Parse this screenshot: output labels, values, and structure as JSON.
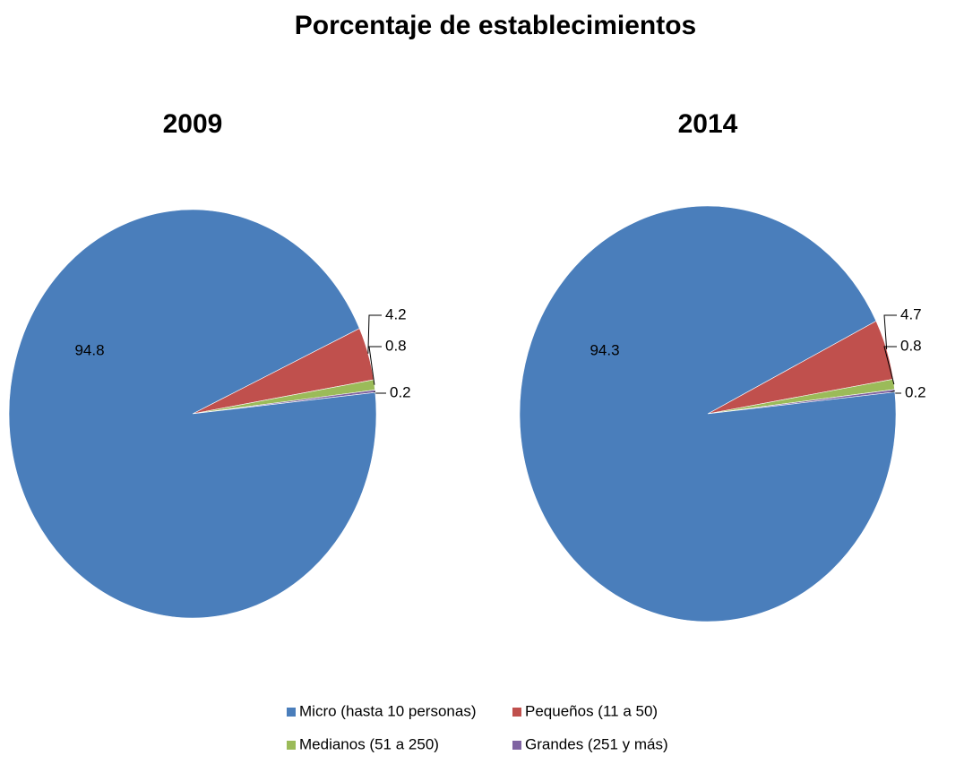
{
  "title": "Porcentaje de establecimientos",
  "legend": {
    "categories": [
      "Micro (hasta 10 personas)",
      "Pequeños (11 a 50)",
      "Medianos (51 a 250)",
      "Grandes (251 y más)"
    ],
    "colors": [
      "#4a7ebb",
      "#c0504d",
      "#9bbb59",
      "#8064a2"
    ]
  },
  "chart_data": [
    {
      "type": "pie",
      "title": "2009",
      "values": [
        94.8,
        4.2,
        0.8,
        0.2
      ]
    },
    {
      "type": "pie",
      "title": "2014",
      "values": [
        94.3,
        4.7,
        0.8,
        0.2
      ]
    }
  ]
}
